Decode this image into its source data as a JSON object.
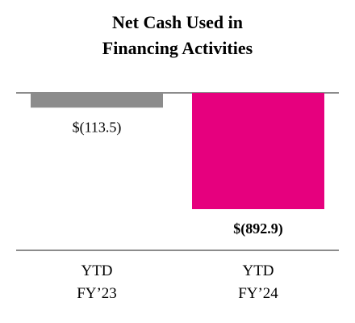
{
  "chart_data": {
    "type": "bar",
    "title": "Net Cash Used in Financing Activities",
    "categories": [
      "YTD FY’23",
      "YTD FY’24"
    ],
    "values": [
      -113.5,
      -892.9
    ],
    "value_labels": [
      "$(113.5)",
      "$(892.9)"
    ],
    "colors": [
      "#8c8c8c",
      "#e6007e"
    ]
  }
}
